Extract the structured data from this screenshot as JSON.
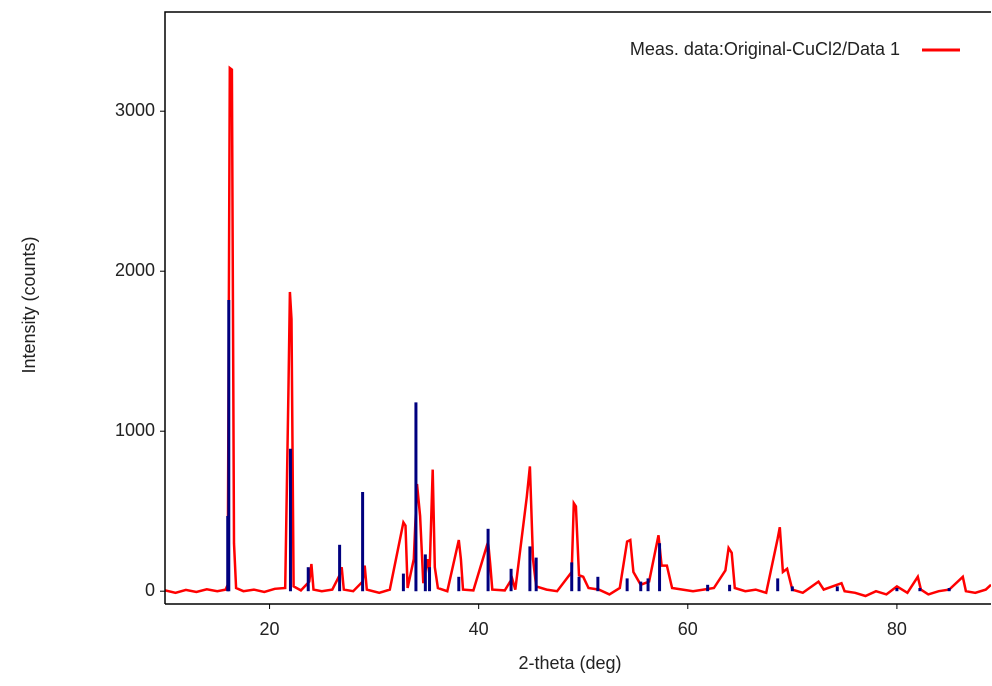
{
  "chart_data": {
    "type": "line",
    "x_label": "2-theta (deg)",
    "y_label": "Intensity (counts)",
    "xlim": [
      10,
      89
    ],
    "ylim": [
      -80,
      3620
    ],
    "xticks": [
      20,
      40,
      60,
      80
    ],
    "yticks": [
      0,
      1000,
      2000,
      3000
    ],
    "grid": false,
    "legend": "upper right",
    "series": [
      {
        "name": "Meas. data:Original-CuCl2/Data 1",
        "color": "#ff0000",
        "x": [
          10,
          11,
          12,
          13,
          14,
          15,
          15.8,
          16.0,
          16.2,
          16.4,
          16.6,
          16.8,
          17.5,
          18.5,
          19.5,
          20.5,
          21.5,
          21.8,
          21.95,
          22.1,
          22.3,
          23,
          23.8,
          24,
          24.2,
          25,
          26,
          26.7,
          26.9,
          27.1,
          28,
          28.9,
          29.1,
          29.3,
          30.5,
          31.5,
          32.8,
          33.0,
          33.2,
          33.8,
          34.1,
          34.4,
          34.7,
          35.1,
          35.3,
          35.6,
          35.8,
          36.1,
          37,
          38.1,
          38.3,
          38.5,
          39.5,
          40.9,
          41.1,
          41.3,
          42.5,
          43.2,
          43.5,
          44.6,
          44.9,
          45.2,
          45.5,
          46.5,
          47.5,
          48.9,
          49.1,
          49.3,
          49.6,
          50.0,
          50.5,
          51.5,
          52.5,
          53.5,
          54.2,
          54.5,
          54.8,
          55.5,
          56.3,
          57.2,
          57.5,
          58.0,
          58.5,
          59.5,
          60.5,
          61.5,
          62.5,
          63.6,
          63.9,
          64.2,
          64.5,
          65.5,
          66.5,
          67.5,
          68.6,
          68.8,
          69.1,
          69.5,
          70,
          71,
          72.5,
          73,
          74.7,
          75,
          76,
          77,
          78,
          79,
          80,
          81,
          82,
          82.3,
          83,
          84,
          85,
          86.3,
          86.6,
          87.5,
          88.5,
          89
        ],
        "values": [
          5,
          -10,
          8,
          -5,
          12,
          0,
          10,
          40,
          3270,
          3260,
          300,
          20,
          0,
          10,
          -5,
          15,
          20,
          1240,
          1870,
          1700,
          30,
          5,
          60,
          170,
          10,
          0,
          10,
          100,
          150,
          10,
          0,
          60,
          160,
          10,
          -10,
          10,
          430,
          410,
          20,
          200,
          670,
          470,
          50,
          200,
          100,
          760,
          150,
          20,
          0,
          320,
          200,
          10,
          5,
          310,
          170,
          10,
          5,
          80,
          10,
          590,
          780,
          200,
          30,
          10,
          0,
          120,
          550,
          530,
          100,
          90,
          20,
          10,
          -20,
          20,
          310,
          320,
          120,
          40,
          60,
          350,
          160,
          160,
          20,
          10,
          0,
          10,
          20,
          130,
          270,
          240,
          20,
          0,
          10,
          -10,
          330,
          400,
          120,
          140,
          10,
          -10,
          60,
          10,
          50,
          0,
          -10,
          -30,
          0,
          -20,
          30,
          -10,
          90,
          10,
          -20,
          0,
          10,
          90,
          0,
          -10,
          10,
          40
        ]
      },
      {
        "type": "stick",
        "color": "#00007f",
        "x": [
          16.0,
          16.1,
          22.0,
          23.7,
          26.7,
          28.9,
          32.8,
          34.0,
          34.9,
          35.3,
          38.1,
          40.9,
          43.1,
          44.9,
          45.5,
          48.9,
          49.6,
          51.4,
          54.2,
          55.5,
          56.2,
          57.3,
          61.9,
          64.0,
          68.6,
          70,
          74.3,
          80,
          82.2,
          85
        ],
        "values": [
          470,
          1820,
          890,
          150,
          290,
          620,
          110,
          1180,
          230,
          150,
          90,
          390,
          140,
          280,
          210,
          180,
          90,
          90,
          80,
          60,
          80,
          300,
          40,
          40,
          80,
          30,
          30,
          20,
          20,
          20
        ]
      }
    ]
  }
}
